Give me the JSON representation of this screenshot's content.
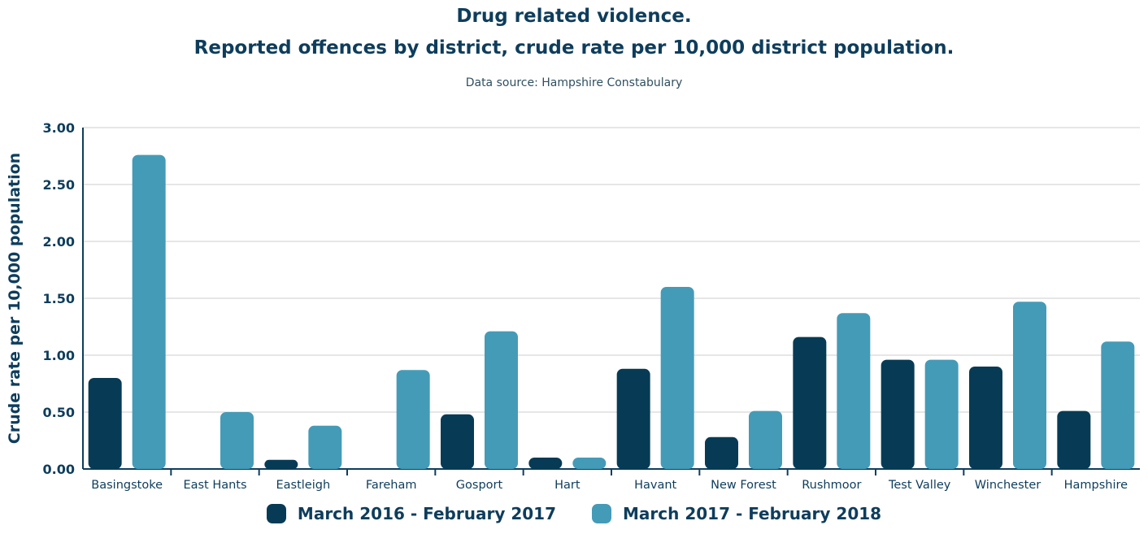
{
  "colors": {
    "series1": "#073b55",
    "series2": "#449bb7",
    "text": "#0e3d5c",
    "grid": "#e6e6e6"
  },
  "chart_data": {
    "type": "bar",
    "title": "Drug related violence.",
    "subtitle": "Reported offences by district, crude rate per 10,000 district population.",
    "source": "Data source: Hampshire Constabulary",
    "xlabel": "",
    "ylabel": "Crude rate per 10,000 population",
    "ylim": [
      0,
      3
    ],
    "yticks": [
      "0.00",
      "0.50",
      "1.00",
      "1.50",
      "2.00",
      "2.50",
      "3.00"
    ],
    "grid": true,
    "legend_position": "bottom",
    "categories": [
      "Basingstoke",
      "East Hants",
      "Eastleigh",
      "Fareham",
      "Gosport",
      "Hart",
      "Havant",
      "New Forest",
      "Rushmoor",
      "Test Valley",
      "Winchester",
      "Hampshire"
    ],
    "series": [
      {
        "name": "March 2016 - February 2017",
        "values": [
          0.8,
          0.0,
          0.08,
          0.0,
          0.48,
          0.1,
          0.88,
          0.28,
          1.16,
          0.96,
          0.9,
          0.51
        ]
      },
      {
        "name": "March 2017 - February 2018",
        "values": [
          2.76,
          0.5,
          0.38,
          0.87,
          1.21,
          0.1,
          1.6,
          0.51,
          1.37,
          0.96,
          1.47,
          1.12
        ]
      }
    ]
  }
}
